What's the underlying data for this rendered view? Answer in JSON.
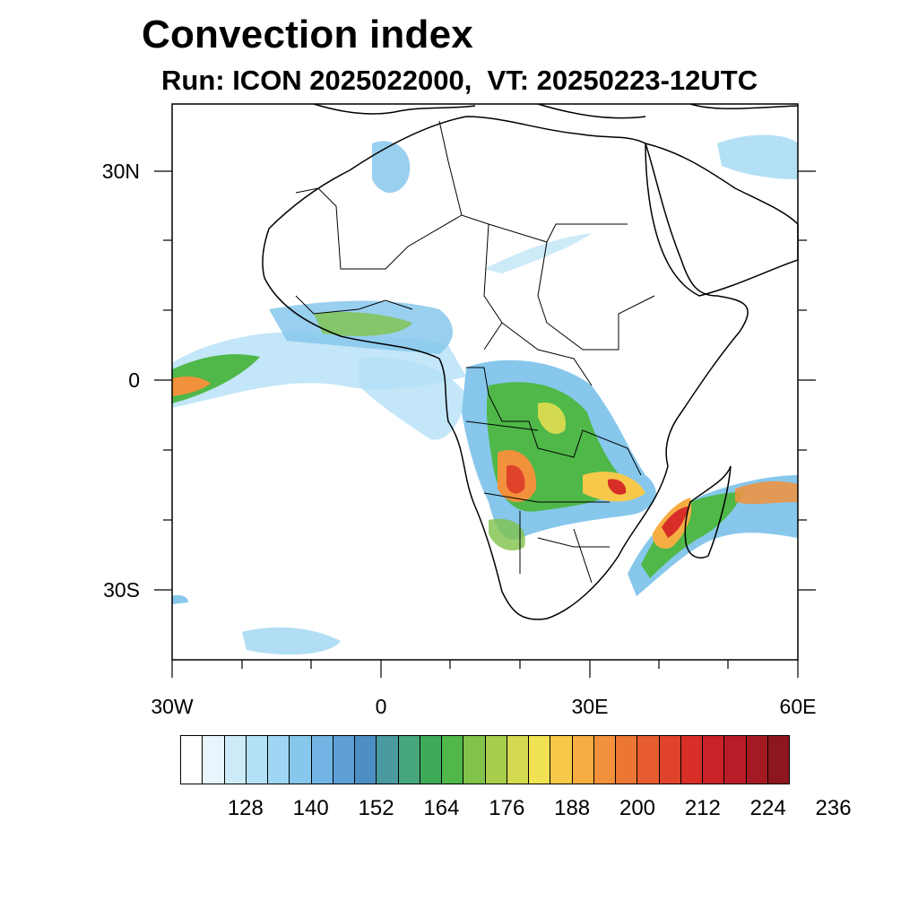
{
  "header": {
    "title": "Convection index",
    "subtitle": "Run: ICON 2025022000,  VT: 20250223-12UTC"
  },
  "axes": {
    "lat_labels": [
      "30N",
      "0",
      "30S"
    ],
    "lon_labels": [
      "30W",
      "0",
      "30E",
      "60E"
    ]
  },
  "colorbar": {
    "labels": [
      "128",
      "140",
      "152",
      "164",
      "176",
      "188",
      "200",
      "212",
      "224",
      "236"
    ],
    "colors": [
      "#ffffff",
      "#e8f5fc",
      "#cdeaf8",
      "#b4e0f6",
      "#9ed6f3",
      "#87c7ec",
      "#72b4e3",
      "#5d9fd6",
      "#4d8fc5",
      "#4a9aa0",
      "#46a67c",
      "#3eab58",
      "#4fb848",
      "#80c24a",
      "#a8cc4c",
      "#d3da4f",
      "#f0e253",
      "#f7c94b",
      "#f6ad42",
      "#f2913b",
      "#ec7633",
      "#e65c2e",
      "#df432a",
      "#d72e28",
      "#c92228",
      "#b81c26",
      "#a41a22",
      "#8e161e"
    ]
  }
}
